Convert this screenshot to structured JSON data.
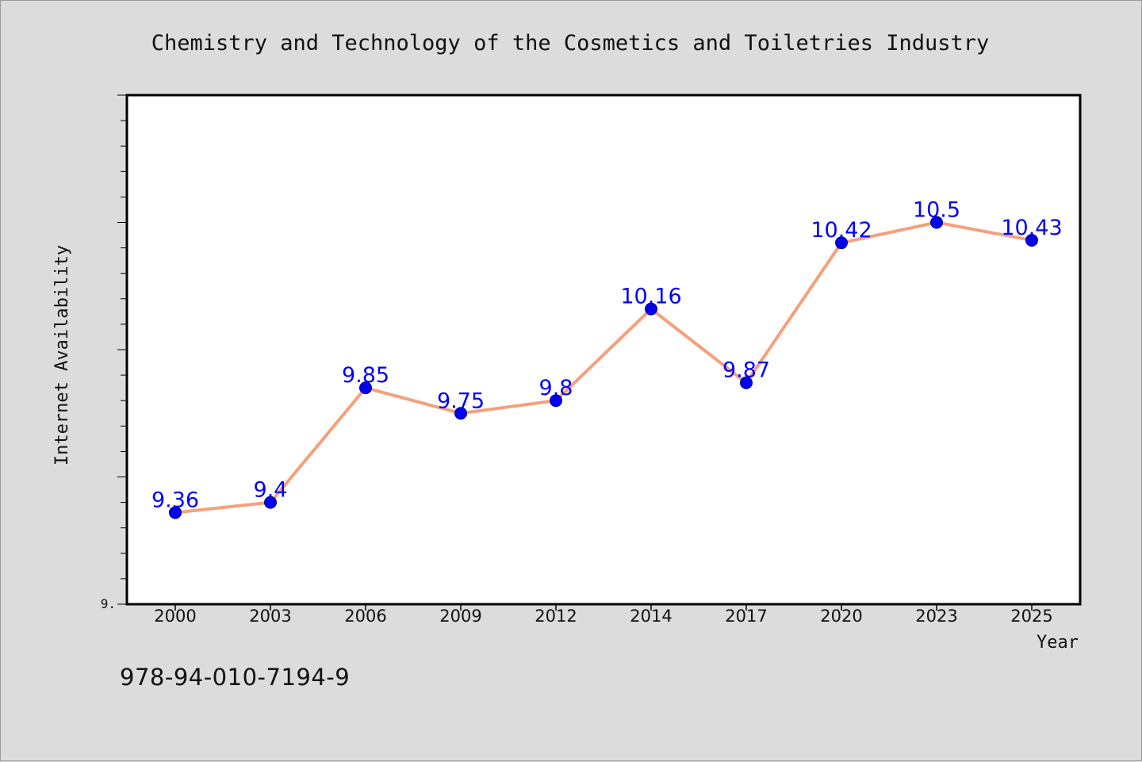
{
  "chart_data": {
    "type": "line",
    "title": "Chemistry and Technology of the Cosmetics and Toiletries Industry",
    "xlabel": "Year",
    "ylabel": "Internet Availability",
    "categories": [
      "2000",
      "2003",
      "2006",
      "2009",
      "2012",
      "2014",
      "2017",
      "2020",
      "2023",
      "2025"
    ],
    "values": [
      9.36,
      9.4,
      9.85,
      9.75,
      9.8,
      10.16,
      9.87,
      10.42,
      10.5,
      10.43
    ],
    "value_labels": [
      "9.36",
      "9.4",
      "9.85",
      "9.75",
      "9.8",
      "10.16",
      "9.87",
      "10.42",
      "10.5",
      "10.43"
    ],
    "ylim": [
      9.0,
      11.0
    ],
    "y_tick_labels": [
      {
        "value": 9.0,
        "label": "9."
      }
    ],
    "grid": false,
    "colors": {
      "line": "#f5a07c",
      "marker": "#0000ee",
      "label": "#0000ff",
      "background": "#dcdcdc",
      "plot_bg": "#ffffff"
    }
  },
  "footer": {
    "isbn": "978-94-010-7194-9"
  }
}
